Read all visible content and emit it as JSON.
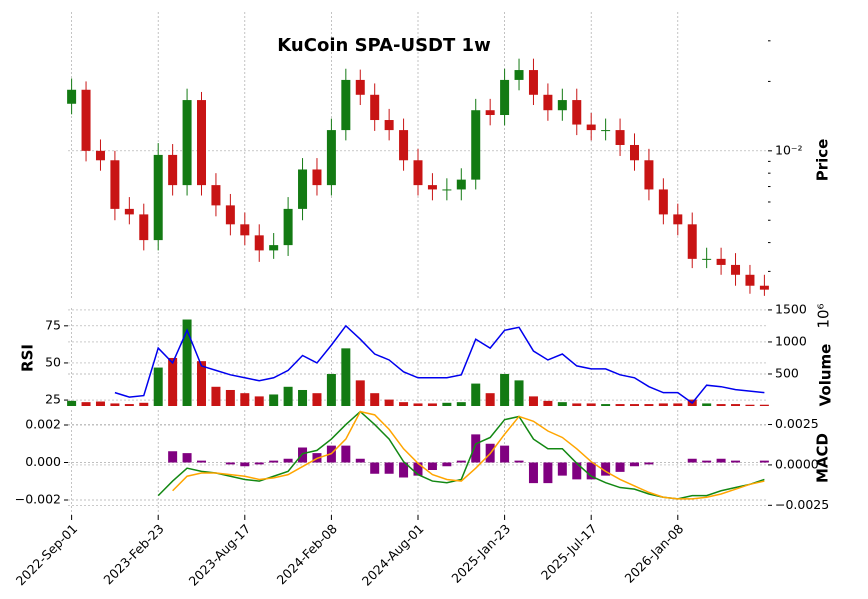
{
  "chart_data": {
    "type": "candlestick",
    "title": "KuCoin SPA-USDT 1w",
    "grid": true,
    "x": [
      0,
      4,
      8,
      12,
      16,
      20,
      24,
      28,
      32,
      36,
      40,
      44,
      48,
      52,
      56,
      60,
      64,
      68,
      72,
      76,
      80,
      84,
      88,
      92,
      96,
      100,
      104,
      108,
      112,
      116,
      120,
      124,
      128,
      132,
      136,
      140,
      144,
      148,
      152,
      156,
      160,
      164,
      168,
      172,
      176,
      180,
      184,
      188,
      192
    ],
    "xlim": [
      -1,
      193
    ],
    "xticks": [
      {
        "value": 0,
        "label": "2022-Sep-01"
      },
      {
        "value": 24,
        "label": "2023-Feb-23"
      },
      {
        "value": 48,
        "label": "2023-Aug-17"
      },
      {
        "value": 72,
        "label": "2024-Feb-08"
      },
      {
        "value": 96,
        "label": "2024-Aug-01"
      },
      {
        "value": 120,
        "label": "2025-Jan-23"
      },
      {
        "value": 144,
        "label": "2025-Jul-17"
      },
      {
        "value": 168,
        "label": "2026-Jan-08"
      }
    ],
    "price": {
      "label": "Price",
      "log_scale": true,
      "up_color": "#137a13",
      "down_color": "#c81414",
      "ylim": [
        0.0023,
        0.04
      ],
      "yticks": [
        {
          "value": 0.01,
          "label": "10⁻²"
        }
      ],
      "yticks_minor": [
        0.003,
        0.004,
        0.005,
        0.006,
        0.007,
        0.008,
        0.009,
        0.02,
        0.03
      ],
      "open": [
        0.016,
        0.0184,
        0.01,
        0.0091,
        0.0056,
        0.0053,
        0.0041,
        0.0096,
        0.0071,
        0.0166,
        0.0071,
        0.0058,
        0.0048,
        0.0043,
        0.0037,
        0.0039,
        0.0056,
        0.0083,
        0.0071,
        0.0123,
        0.0203,
        0.0175,
        0.0136,
        0.0123,
        0.0091,
        0.0071,
        0.0068,
        0.0068,
        0.0075,
        0.015,
        0.0143,
        0.0203,
        0.0224,
        0.0175,
        0.015,
        0.0166,
        0.013,
        0.0123,
        0.0123,
        0.0106,
        0.0091,
        0.0068,
        0.0053,
        0.0048,
        0.0034,
        0.0034,
        0.0032,
        0.0029,
        0.0026
      ],
      "high": [
        0.0206,
        0.02,
        0.0112,
        0.01,
        0.0063,
        0.0059,
        0.0108,
        0.0107,
        0.0186,
        0.018,
        0.008,
        0.0065,
        0.0054,
        0.0048,
        0.0044,
        0.0063,
        0.0093,
        0.0093,
        0.0138,
        0.0227,
        0.0225,
        0.0196,
        0.0152,
        0.0138,
        0.0102,
        0.008,
        0.0076,
        0.0084,
        0.0168,
        0.0168,
        0.0227,
        0.0251,
        0.0251,
        0.0196,
        0.0186,
        0.0186,
        0.0146,
        0.0138,
        0.0138,
        0.0119,
        0.0102,
        0.0076,
        0.0059,
        0.0054,
        0.0038,
        0.0038,
        0.0036,
        0.0032,
        0.0029
      ],
      "low": [
        0.0144,
        0.009,
        0.0082,
        0.005,
        0.0048,
        0.0037,
        0.0037,
        0.0064,
        0.0064,
        0.0064,
        0.0052,
        0.0043,
        0.0039,
        0.0033,
        0.0034,
        0.0035,
        0.005,
        0.0064,
        0.0064,
        0.0111,
        0.0158,
        0.0122,
        0.0111,
        0.0082,
        0.0064,
        0.0061,
        0.0061,
        0.0061,
        0.0068,
        0.0129,
        0.0129,
        0.0183,
        0.0158,
        0.0135,
        0.0135,
        0.0117,
        0.0111,
        0.0111,
        0.0095,
        0.0082,
        0.0061,
        0.0048,
        0.0043,
        0.0031,
        0.0031,
        0.0029,
        0.0026,
        0.0024,
        0.00235
      ],
      "close": [
        0.0184,
        0.01,
        0.0091,
        0.0056,
        0.0053,
        0.0041,
        0.0096,
        0.0071,
        0.0166,
        0.0071,
        0.0058,
        0.0048,
        0.0043,
        0.0037,
        0.0039,
        0.0056,
        0.0083,
        0.0071,
        0.0123,
        0.0203,
        0.0175,
        0.0136,
        0.0123,
        0.0091,
        0.0071,
        0.0068,
        0.0068,
        0.0075,
        0.015,
        0.0143,
        0.0203,
        0.0224,
        0.0175,
        0.015,
        0.0166,
        0.013,
        0.0123,
        0.0123,
        0.0106,
        0.0091,
        0.0068,
        0.0053,
        0.0048,
        0.0034,
        0.0034,
        0.0032,
        0.0029,
        0.0026,
        0.0025
      ]
    },
    "volume": {
      "label": "Volume",
      "offset_label": "10⁶",
      "ylim": [
        0,
        1530
      ],
      "yticks": [
        500,
        1000,
        1500
      ],
      "values": [
        80,
        60,
        70,
        40,
        30,
        50,
        600,
        750,
        1350,
        700,
        300,
        250,
        200,
        150,
        180,
        300,
        250,
        200,
        500,
        900,
        400,
        200,
        100,
        60,
        40,
        40,
        50,
        60,
        350,
        200,
        500,
        400,
        150,
        80,
        60,
        40,
        40,
        30,
        30,
        30,
        30,
        40,
        40,
        100,
        40,
        30,
        30,
        20,
        20
      ]
    },
    "rsi": {
      "label": "RSI",
      "color": "#0000ee",
      "ylim": [
        21,
        87
      ],
      "yticks": [
        25,
        50,
        75
      ],
      "values": [
        null,
        null,
        null,
        30,
        27,
        28,
        60,
        50,
        72,
        48,
        45,
        42,
        40,
        38,
        40,
        45,
        55,
        50,
        62,
        75,
        66,
        56,
        52,
        44,
        40,
        40,
        40,
        42,
        66,
        60,
        72,
        74,
        58,
        52,
        56,
        48,
        46,
        46,
        42,
        40,
        34,
        30,
        30,
        23,
        35,
        34,
        32,
        31,
        30
      ]
    },
    "macd": {
      "label": "MACD",
      "ylim": [
        -0.0028,
        0.0028
      ],
      "yticks": [
        {
          "value": 0.002,
          "label": "0.002"
        },
        {
          "value": 0,
          "label": "0.000"
        },
        {
          "value": -0.002,
          "label": "−0.002"
        }
      ],
      "y2lim": [
        -0.0031,
        0.0034
      ],
      "y2ticks": [
        {
          "value": 0.0025,
          "label": "0.0025"
        },
        {
          "value": 0,
          "label": "0.0000"
        },
        {
          "value": -0.0025,
          "label": "−0.0025"
        }
      ],
      "histogram": {
        "color": "#800080",
        "values": [
          null,
          null,
          null,
          null,
          null,
          null,
          null,
          0.0006,
          0.0005,
          0.0001,
          0,
          -0.0001,
          -0.0002,
          -0.0001,
          0.0001,
          0.0002,
          0.0008,
          0.0005,
          0.0009,
          0.0009,
          0.0002,
          -0.0006,
          -0.0006,
          -0.0008,
          -0.0007,
          -0.0004,
          -0.0002,
          0.0001,
          0.0015,
          0.001,
          0.0009,
          0.0001,
          -0.0011,
          -0.0011,
          -0.0007,
          -0.0009,
          -0.0009,
          -0.0007,
          -0.0005,
          -0.0002,
          -0.0001,
          0,
          0,
          0.0002,
          0.0001,
          0.0002,
          0.0001,
          0,
          0.0001
        ]
      },
      "macd_line": {
        "color": "#138813",
        "axis": "y2",
        "values": [
          null,
          null,
          null,
          null,
          null,
          null,
          -0.0019,
          -0.001,
          -0.0002,
          -0.0004,
          -0.0005,
          -0.0007,
          -0.0009,
          -0.001,
          -0.0007,
          -0.0004,
          0.0007,
          0.0009,
          0.0016,
          0.0025,
          0.0033,
          0.0025,
          0.0016,
          0.0002,
          -0.0006,
          -0.001,
          -0.0011,
          -0.0009,
          0.0013,
          0.0017,
          0.0028,
          0.003,
          0.0016,
          0.001,
          0.001,
          0.0001,
          -0.0007,
          -0.0011,
          -0.0014,
          -0.0015,
          -0.0018,
          -0.002,
          -0.0021,
          -0.0019,
          -0.0019,
          -0.0016,
          -0.0014,
          -0.0012,
          -0.0009
        ]
      },
      "signal_line": {
        "color": "#ffa500",
        "axis": "y2",
        "values": [
          null,
          null,
          null,
          null,
          null,
          null,
          null,
          -0.0016,
          -0.0007,
          -0.0005,
          -0.0005,
          -0.0006,
          -0.0007,
          -0.0009,
          -0.0008,
          -0.0006,
          -0.0001,
          0.0004,
          0.0007,
          0.0016,
          0.0033,
          0.0031,
          0.0022,
          0.001,
          0.0001,
          -0.0006,
          -0.0009,
          -0.001,
          -0.0002,
          0.0007,
          0.0019,
          0.003,
          0.0027,
          0.0021,
          0.0017,
          0.001,
          0.0002,
          -0.0004,
          -0.0009,
          -0.0013,
          -0.0017,
          -0.002,
          -0.0021,
          -0.0021,
          -0.002,
          -0.0018,
          -0.0015,
          -0.0012,
          -0.001
        ]
      }
    }
  }
}
